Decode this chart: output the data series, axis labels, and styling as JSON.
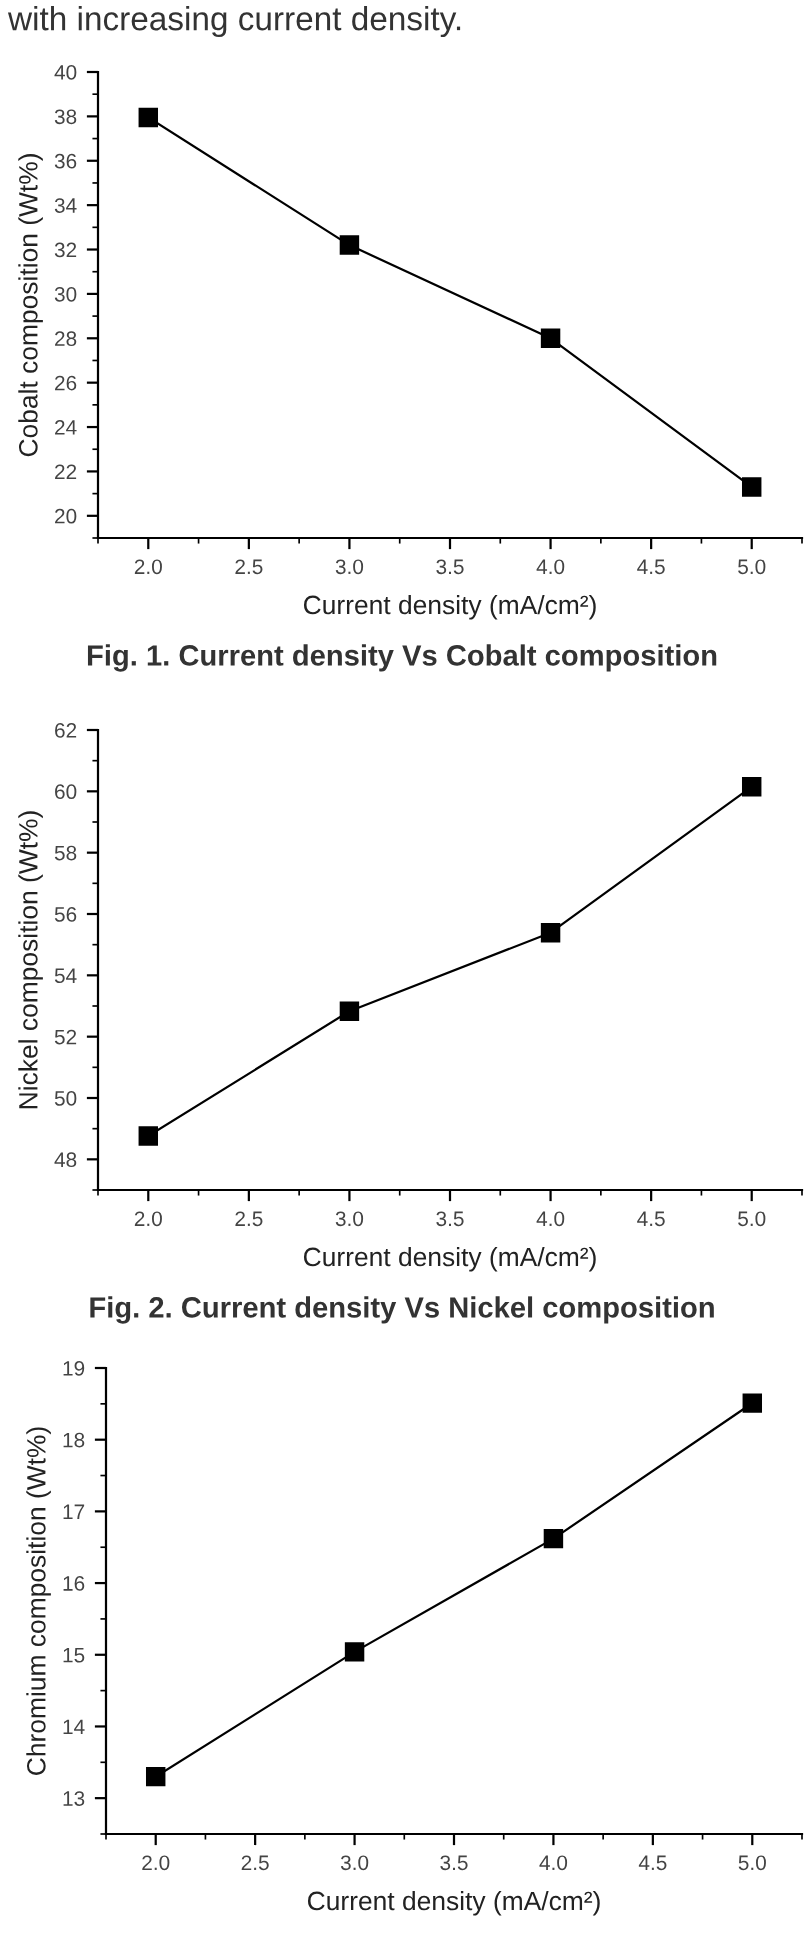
{
  "chart_data": [
    {
      "type": "line",
      "title": "Fig. 1. Current density Vs Cobalt composition",
      "annotations": [
        "with increasing current density."
      ],
      "xlabel": "Current density (mA/cm²)",
      "ylabel": "Cobalt composition (Wt%)",
      "x": [
        2.0,
        3.0,
        4.0,
        5.0
      ],
      "series": [
        {
          "color": "#000000",
          "values": [
            37.95,
            32.2,
            28.0,
            21.3
          ]
        }
      ],
      "xlim": [
        1.75,
        5.25
      ],
      "xticks": [
        {
          "value": 2,
          "label": "2.0"
        },
        2.5,
        {
          "value": 3,
          "label": "3.0"
        },
        3.5,
        {
          "value": 4,
          "label": "4.0"
        },
        4.5,
        {
          "value": 5,
          "label": "5.0"
        }
      ],
      "ylim": [
        19,
        40
      ],
      "yticks": [
        20,
        22,
        24,
        26,
        28,
        30,
        32,
        34,
        36,
        38,
        40
      ],
      "marker": "square",
      "line_style": "solid",
      "grid": false,
      "legend": false
    },
    {
      "type": "line",
      "title": "Fig. 2. Current density Vs Nickel composition",
      "xlabel": "Current density (mA/cm²)",
      "ylabel": "Nickel composition (Wt%)",
      "x": [
        2.0,
        3.0,
        4.0,
        5.0
      ],
      "series": [
        {
          "color": "#000000",
          "values": [
            48.76,
            52.83,
            55.39,
            60.15
          ]
        }
      ],
      "xlim": [
        1.75,
        5.25
      ],
      "xticks": [
        {
          "value": 2,
          "label": "2.0"
        },
        2.5,
        {
          "value": 3,
          "label": "3.0"
        },
        3.5,
        {
          "value": 4,
          "label": "4.0"
        },
        4.5,
        {
          "value": 5,
          "label": "5.0"
        }
      ],
      "ylim": [
        47,
        62
      ],
      "yticks": [
        48,
        50,
        52,
        54,
        56,
        58,
        60,
        62
      ],
      "marker": "square",
      "line_style": "solid",
      "grid": false,
      "legend": false
    },
    {
      "type": "line",
      "xlabel": "Current density (mA/cm²)",
      "ylabel": "Chromium composition (Wt%)",
      "x": [
        2.0,
        3.0,
        4.0,
        5.0
      ],
      "series": [
        {
          "color": "#000000",
          "values": [
            13.3,
            15.04,
            16.62,
            18.51
          ]
        }
      ],
      "xlim": [
        1.75,
        5.25
      ],
      "xticks": [
        {
          "value": 2,
          "label": "2.0"
        },
        2.5,
        {
          "value": 3,
          "label": "3.0"
        },
        3.5,
        {
          "value": 4,
          "label": "4.0"
        },
        4.5,
        {
          "value": 5,
          "label": "5.0"
        }
      ],
      "ylim": [
        12.5,
        19
      ],
      "yticks": [
        13,
        14,
        15,
        16,
        17,
        18,
        19
      ],
      "marker": "square",
      "line_style": "solid",
      "grid": false,
      "legend": false
    }
  ]
}
